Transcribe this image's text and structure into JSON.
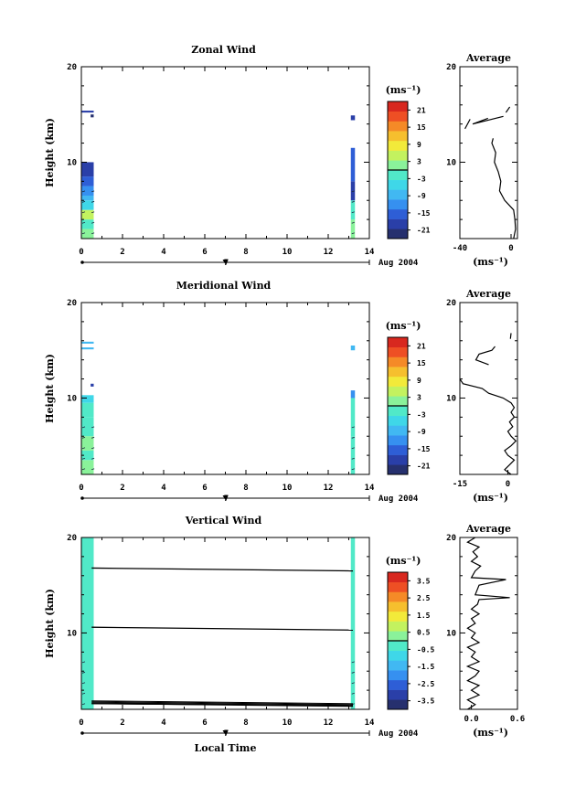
{
  "chart_data": [
    {
      "type": "heatmap",
      "title": "Zonal Wind",
      "ylabel": "Height (km)",
      "xlabel": "",
      "xlim": [
        0,
        14
      ],
      "ylim": [
        2,
        20
      ],
      "xticks": [
        "0",
        "2",
        "4",
        "6",
        "8",
        "10",
        "12",
        "14"
      ],
      "yticks": [
        "10",
        "20"
      ],
      "date_label": "Aug 2004",
      "day_label": "7",
      "units_label": "(ms⁻¹)",
      "colorbar_ticks": [
        "21",
        "15",
        "9",
        "3",
        "-3",
        "-9",
        "-15",
        "-21"
      ],
      "colorbar_range": [
        -24,
        24
      ],
      "observation_blocks": [
        {
          "x_start": 0.0,
          "x_end": 0.6,
          "segments": [
            {
              "y0": 2.0,
              "y1": 3.0,
              "v": 2
            },
            {
              "y0": 3.0,
              "y1": 4.0,
              "v": -2
            },
            {
              "y0": 4.0,
              "y1": 5.0,
              "v": 4
            },
            {
              "y0": 5.0,
              "y1": 6.0,
              "v": -4
            },
            {
              "y0": 6.0,
              "y1": 6.5,
              "v": -9
            },
            {
              "y0": 6.5,
              "y1": 7.5,
              "v": -12
            },
            {
              "y0": 7.5,
              "y1": 8.5,
              "v": -16
            },
            {
              "y0": 8.5,
              "y1": 10.0,
              "v": -19
            },
            {
              "y0": 15.2,
              "y1": 15.4,
              "v": -20
            }
          ]
        },
        {
          "x_start": 0.45,
          "x_end": 0.6,
          "segments": [
            {
              "y0": 14.7,
              "y1": 15.0,
              "v": -22
            }
          ]
        },
        {
          "x_start": 13.1,
          "x_end": 13.3,
          "segments": [
            {
              "y0": 2.0,
              "y1": 4.0,
              "v": 1
            },
            {
              "y0": 4.0,
              "y1": 6.0,
              "v": -3
            },
            {
              "y0": 6.0,
              "y1": 8.0,
              "v": -18
            },
            {
              "y0": 8.0,
              "y1": 11.5,
              "v": -16
            },
            {
              "y0": 14.4,
              "y1": 14.9,
              "v": -19
            }
          ]
        }
      ],
      "average": {
        "title": "Average",
        "xlim": [
          -40,
          5
        ],
        "xticks": [
          "-40",
          "0"
        ],
        "yticks": [
          "10",
          "20"
        ],
        "xlabel": "(ms⁻¹)",
        "segments": [
          [
            [
              2.0,
              2.0
            ],
            [
              3.5,
              3.0
            ],
            [
              3.0,
              4.0
            ],
            [
              2.0,
              5.0
            ],
            [
              -5.0,
              6.0
            ],
            [
              -9.0,
              7.0
            ],
            [
              -8.0,
              8.0
            ],
            [
              -10.0,
              9.0
            ],
            [
              -13.0,
              10.0
            ],
            [
              -12.0,
              11.0
            ],
            [
              -15.0,
              12.0
            ],
            [
              -14.0,
              12.5
            ]
          ],
          [
            [
              -6.0,
              14.8
            ],
            [
              -30.0,
              14.0
            ],
            [
              -18.0,
              14.6
            ]
          ],
          [
            [
              -36.0,
              13.5
            ],
            [
              -32.0,
              14.5
            ]
          ],
          [
            [
              -4.0,
              15.2
            ],
            [
              -1.0,
              15.8
            ]
          ]
        ]
      }
    },
    {
      "type": "heatmap",
      "title": "Meridional Wind",
      "ylabel": "Height (km)",
      "xlabel": "",
      "xlim": [
        0,
        14
      ],
      "ylim": [
        2,
        20
      ],
      "xticks": [
        "0",
        "2",
        "4",
        "6",
        "8",
        "10",
        "12",
        "14"
      ],
      "yticks": [
        "10",
        "20"
      ],
      "date_label": "Aug 2004",
      "day_label": "7",
      "units_label": "(ms⁻¹)",
      "colorbar_ticks": [
        "21",
        "15",
        "9",
        "3",
        "-3",
        "-9",
        "-15",
        "-21"
      ],
      "colorbar_range": [
        -24,
        24
      ],
      "observation_blocks": [
        {
          "x_start": 0.0,
          "x_end": 0.6,
          "segments": [
            {
              "y0": 2.0,
              "y1": 3.5,
              "v": 3
            },
            {
              "y0": 3.5,
              "y1": 4.5,
              "v": -2
            },
            {
              "y0": 4.5,
              "y1": 6.0,
              "v": 1
            },
            {
              "y0": 6.0,
              "y1": 8.0,
              "v": -3
            },
            {
              "y0": 8.0,
              "y1": 9.5,
              "v": -1
            },
            {
              "y0": 9.5,
              "y1": 10.3,
              "v": -6
            },
            {
              "y0": 15.1,
              "y1": 15.3,
              "v": -10
            },
            {
              "y0": 15.7,
              "y1": 15.9,
              "v": -8
            }
          ]
        },
        {
          "x_start": 0.45,
          "x_end": 0.6,
          "segments": [
            {
              "y0": 11.2,
              "y1": 11.5,
              "v": -18
            }
          ]
        },
        {
          "x_start": 13.1,
          "x_end": 13.3,
          "segments": [
            {
              "y0": 2.0,
              "y1": 6.0,
              "v": -1
            },
            {
              "y0": 6.0,
              "y1": 10.0,
              "v": -3
            },
            {
              "y0": 10.0,
              "y1": 10.8,
              "v": -12
            },
            {
              "y0": 15.0,
              "y1": 15.5,
              "v": -9
            }
          ]
        }
      ],
      "average": {
        "title": "Average",
        "xlim": [
          -15,
          3
        ],
        "xticks": [
          "-15",
          "0"
        ],
        "yticks": [
          "10",
          "20"
        ],
        "xlabel": "(ms⁻¹)",
        "segments": [
          [
            [
              1.0,
              2.0
            ],
            [
              -1.0,
              2.5
            ],
            [
              0.5,
              3.0
            ],
            [
              2.0,
              3.5
            ],
            [
              0.0,
              4.0
            ],
            [
              -1.0,
              4.5
            ],
            [
              1.0,
              5.0
            ],
            [
              2.5,
              5.5
            ],
            [
              1.0,
              6.0
            ],
            [
              0.0,
              6.5
            ],
            [
              1.5,
              7.0
            ],
            [
              0.5,
              7.5
            ],
            [
              2.0,
              8.0
            ],
            [
              1.0,
              8.5
            ],
            [
              2.0,
              9.0
            ],
            [
              1.0,
              9.5
            ],
            [
              -1.5,
              10.0
            ],
            [
              -6.0,
              10.5
            ],
            [
              -8.0,
              11.0
            ],
            [
              -14.0,
              11.5
            ],
            [
              -15.0,
              12.0
            ]
          ],
          [
            [
              -6.0,
              13.5
            ],
            [
              -10.0,
              14.0
            ],
            [
              -9.0,
              14.6
            ],
            [
              -5.0,
              15.0
            ],
            [
              -4.0,
              15.4
            ]
          ],
          [
            [
              0.8,
              16.2
            ],
            [
              1.0,
              16.8
            ]
          ]
        ]
      }
    },
    {
      "type": "heatmap",
      "title": "Vertical Wind",
      "ylabel": "Height (km)",
      "xlabel": "Local Time",
      "xlim": [
        0,
        14
      ],
      "ylim": [
        2,
        20
      ],
      "xticks": [
        "0",
        "2",
        "4",
        "6",
        "8",
        "10",
        "12",
        "14"
      ],
      "yticks": [
        "10",
        "20"
      ],
      "date_label": "Aug 2004",
      "day_label": "7",
      "units_label": "(ms⁻¹)",
      "colorbar_ticks": [
        "3.5",
        "2.5",
        "1.5",
        "0.5",
        "-0.5",
        "-1.5",
        "-2.5",
        "-3.5"
      ],
      "colorbar_range": [
        -4,
        4
      ],
      "observation_blocks": [
        {
          "x_start": 0.0,
          "x_end": 0.6,
          "segments": [
            {
              "y0": 2.0,
              "y1": 20.0,
              "v": -0.2
            }
          ]
        },
        {
          "x_start": 13.1,
          "x_end": 13.3,
          "segments": [
            {
              "y0": 2.0,
              "y1": 20.0,
              "v": -0.2
            }
          ]
        }
      ],
      "horizontal_lines": [
        {
          "y_left": 16.8,
          "y_right": 16.5
        },
        {
          "y_left": 10.6,
          "y_right": 10.3
        },
        {
          "y_left": 2.6,
          "y_right": 2.4
        }
      ],
      "average": {
        "title": "Average",
        "xlim": [
          -0.15,
          0.6
        ],
        "xticks": [
          "0.0",
          "0.6"
        ],
        "yticks": [
          "10",
          "20"
        ],
        "xlabel": "(ms⁻¹)",
        "segments": [
          [
            [
              -0.05,
              2.0
            ],
            [
              0.05,
              2.5
            ],
            [
              -0.05,
              3.0
            ],
            [
              0.1,
              3.5
            ],
            [
              0.0,
              4.0
            ],
            [
              0.1,
              4.5
            ],
            [
              -0.05,
              5.0
            ],
            [
              0.05,
              5.5
            ],
            [
              0.1,
              6.0
            ],
            [
              -0.05,
              6.5
            ],
            [
              0.1,
              7.0
            ],
            [
              0.0,
              7.5
            ],
            [
              0.05,
              8.0
            ],
            [
              -0.05,
              8.5
            ],
            [
              0.1,
              9.0
            ],
            [
              0.0,
              9.5
            ],
            [
              0.05,
              10.0
            ],
            [
              -0.05,
              10.5
            ],
            [
              0.05,
              11.0
            ],
            [
              0.0,
              11.5
            ],
            [
              0.1,
              12.0
            ],
            [
              0.0,
              12.5
            ],
            [
              0.08,
              13.0
            ],
            [
              0.1,
              13.5
            ],
            [
              0.5,
              13.7
            ],
            [
              0.05,
              14.0
            ],
            [
              0.1,
              15.0
            ],
            [
              0.45,
              15.6
            ],
            [
              0.0,
              15.8
            ],
            [
              0.05,
              16.5
            ],
            [
              0.12,
              17.0
            ],
            [
              0.0,
              17.5
            ],
            [
              0.08,
              18.0
            ],
            [
              0.02,
              18.5
            ],
            [
              0.1,
              19.0
            ],
            [
              -0.05,
              19.5
            ],
            [
              0.05,
              20.0
            ]
          ]
        ]
      }
    }
  ]
}
